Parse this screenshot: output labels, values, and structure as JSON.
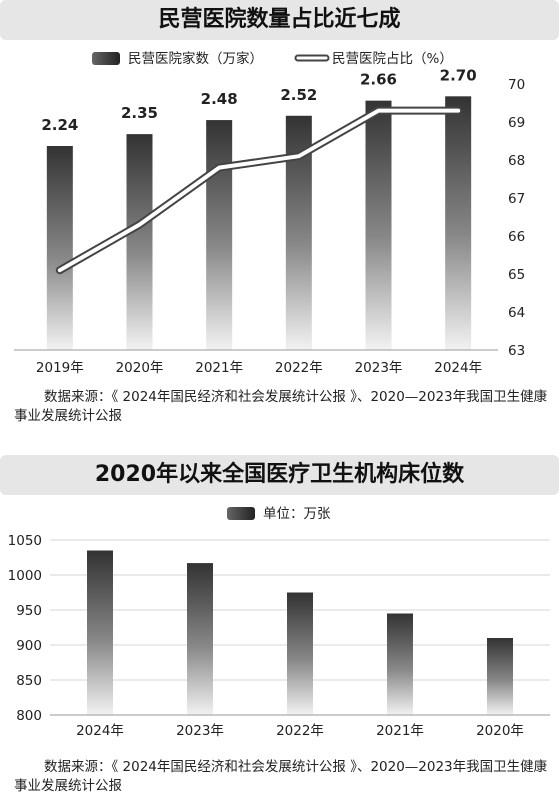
{
  "chart1": {
    "title": "民营医院数量占比近七成",
    "legend_bar": "民营医院家数（万家）",
    "legend_line": "民营医院占比（%）",
    "source": "数据来源：《 2024年国民经济和社会发展统计公报 》、2020—2023年我国卫生健康事业发展统计公报"
  },
  "chart2": {
    "title": "2020年以来全国医疗卫生机构床位数",
    "legend_bar": "单位：万张",
    "source": "数据来源：《 2024年国民经济和社会发展统计公报 》、2020—2023年我国卫生健康事业发展统计公报"
  },
  "chart_data": [
    {
      "type": "bar",
      "title": "民营医院数量占比近七成",
      "categories": [
        "2019年",
        "2020年",
        "2021年",
        "2022年",
        "2023年",
        "2024年"
      ],
      "series": [
        {
          "name": "民营医院家数（万家）",
          "type": "bar",
          "values": [
            2.24,
            2.35,
            2.48,
            2.52,
            2.66,
            2.7
          ],
          "value_labels": [
            "2.24",
            "2.35",
            "2.48",
            "2.52",
            "2.66",
            "2.70"
          ]
        },
        {
          "name": "民营医院占比（%）",
          "type": "line",
          "axis": "right",
          "values": [
            65.1,
            66.3,
            67.8,
            68.1,
            69.3,
            69.3
          ]
        }
      ],
      "y2lim": [
        63,
        70
      ],
      "y2ticks": [
        "63",
        "64",
        "65",
        "66",
        "67",
        "68",
        "69",
        "70"
      ],
      "legend": "top"
    },
    {
      "type": "bar",
      "title": "2020年以来全国医疗卫生机构床位数",
      "categories": [
        "2024年",
        "2023年",
        "2022年",
        "2021年",
        "2020年"
      ],
      "series": [
        {
          "name": "单位：万张",
          "values": [
            1035,
            1017,
            975,
            945,
            910
          ]
        }
      ],
      "ylim": [
        800,
        1050
      ],
      "yticks": [
        "800",
        "850",
        "900",
        "950",
        "1000",
        "1050"
      ],
      "legend": "top"
    }
  ]
}
